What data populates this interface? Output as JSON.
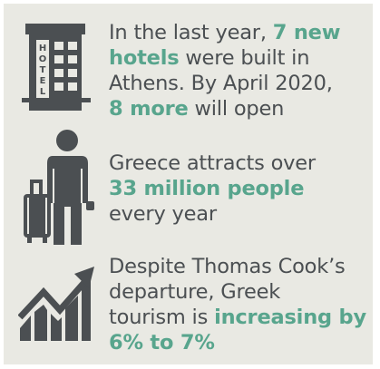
{
  "colors": {
    "panel_background": "#e9e9e3",
    "icon_color": "#4b4f52",
    "text_color": "#4b4f52",
    "highlight_color": "#58a58d"
  },
  "hotel_icon_letters": [
    "H",
    "O",
    "T",
    "E",
    "L"
  ],
  "items": [
    {
      "icon": "hotel-building-icon",
      "lines": [
        [
          {
            "t": "In the last year, "
          },
          {
            "t": "7 new",
            "hl": true
          }
        ],
        [
          {
            "t": "hotels",
            "hl": true
          },
          {
            "t": " were built in"
          }
        ],
        [
          {
            "t": "Athens. By April 2020,"
          }
        ],
        [
          {
            "t": "8 more",
            "hl": true
          },
          {
            "t": " will open"
          }
        ]
      ]
    },
    {
      "icon": "traveler-with-luggage-icon",
      "lines": [
        [
          {
            "t": "Greece attracts over"
          }
        ],
        [
          {
            "t": "33 million people",
            "hl": true
          }
        ],
        [
          {
            "t": "every year"
          }
        ]
      ]
    },
    {
      "icon": "rising-chart-arrow-icon",
      "lines": [
        [
          {
            "t": "Despite Thomas Cook’s"
          }
        ],
        [
          {
            "t": "departure, Greek"
          }
        ],
        [
          {
            "t": "tourism is "
          },
          {
            "t": "increasing by",
            "hl": true
          }
        ],
        [
          {
            "t": "6% to 7%",
            "hl": true
          }
        ]
      ]
    }
  ]
}
